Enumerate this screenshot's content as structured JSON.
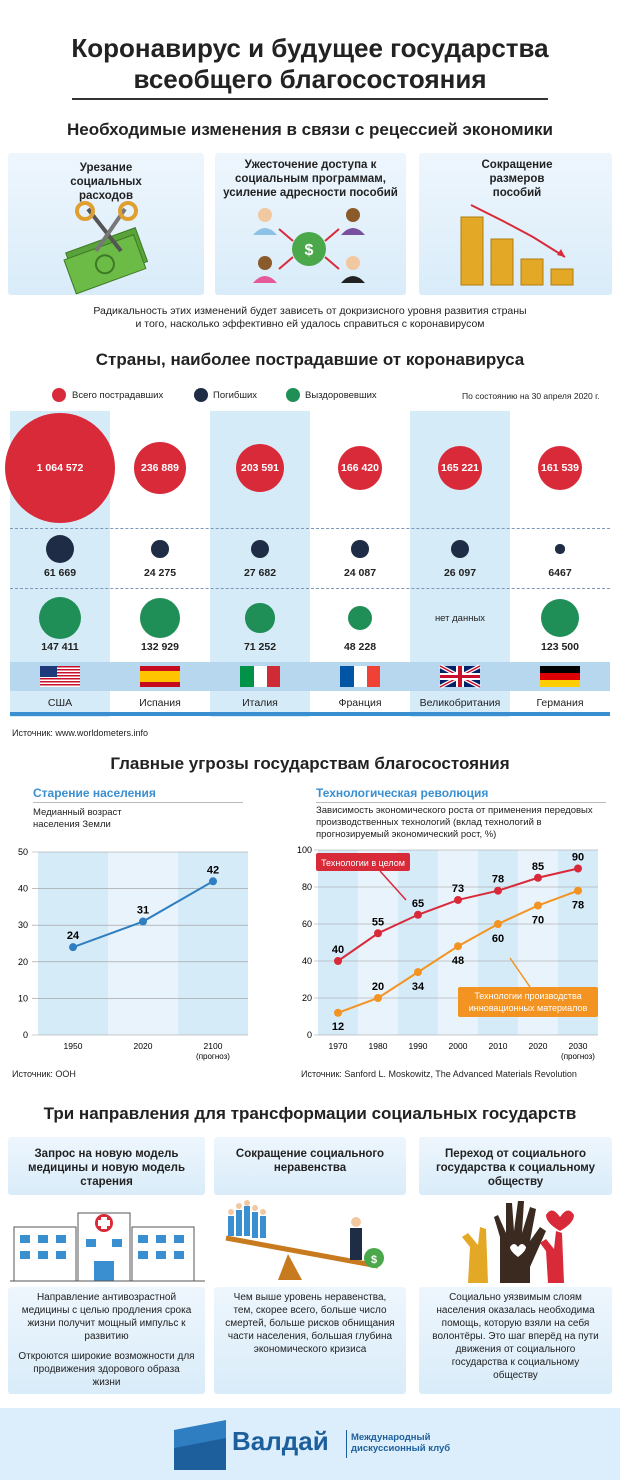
{
  "header": {
    "title_line1": "Коронавирус и будущее государства",
    "title_line2": "всеобщего благосостояния"
  },
  "section1": {
    "title": "Необходимые изменения в связи с рецессией экономики",
    "panels": [
      {
        "title": "Урезание социальных расходов",
        "icon": "scissors-money-icon"
      },
      {
        "title": "Ужесточение доступа к социальным программам, усиление адресности пособий",
        "icon": "money-bag-people-icon"
      },
      {
        "title": "Сокращение размеров пособий",
        "icon": "coin-stacks-decline-icon"
      }
    ],
    "note_line1": "Радикальность этих изменений будет зависеть от докризисного уровня развития страны",
    "note_line2": "и того, насколько эффективно ей удалось справиться с коронавирусом"
  },
  "section2": {
    "title": "Страны, наиболее пострадавшие от коронавируса",
    "legend": {
      "total": "Всего пострадавших",
      "deaths": "Погибших",
      "recovered": "Выздоровевших"
    },
    "date_note": "По состоянию на 30 апреля 2020 г.",
    "colors": {
      "total": "#d92a3a",
      "deaths": "#1e2c45",
      "recovered": "#1f8f57"
    },
    "countries": [
      {
        "name": "США",
        "total": "1 064 572",
        "total_value": 1064572,
        "deaths": "61 669",
        "deaths_value": 61669,
        "recovered": "147 411",
        "recovered_value": 147411,
        "flag": "usa-flag-icon"
      },
      {
        "name": "Испания",
        "total": "236 889",
        "total_value": 236889,
        "deaths": "24 275",
        "deaths_value": 24275,
        "recovered": "132 929",
        "recovered_value": 132929,
        "flag": "spain-flag-icon"
      },
      {
        "name": "Италия",
        "total": "203 591",
        "total_value": 203591,
        "deaths": "27 682",
        "deaths_value": 27682,
        "recovered": "71 252",
        "recovered_value": 71252,
        "flag": "italy-flag-icon"
      },
      {
        "name": "Франция",
        "total": "166 420",
        "total_value": 166420,
        "deaths": "24 087",
        "deaths_value": 24087,
        "recovered": "48 228",
        "recovered_value": 48228,
        "flag": "france-flag-icon"
      },
      {
        "name": "Великобритания",
        "total": "165 221",
        "total_value": 165221,
        "deaths": "26 097",
        "deaths_value": 26097,
        "recovered": "нет данных",
        "recovered_value": null,
        "flag": "uk-flag-icon"
      },
      {
        "name": "Германия",
        "total": "161 539",
        "total_value": 161539,
        "deaths": "6467",
        "deaths_value": 6467,
        "recovered": "123 500",
        "recovered_value": 123500,
        "flag": "germany-flag-icon"
      }
    ],
    "source": "Источник: www.worldometers.info"
  },
  "section3": {
    "title": "Главные угрозы государствам благосостояния",
    "source_left": "Источник: ООН",
    "source_right": "Источник: Sanford L. Moskowitz, The Advanced Materials Revolution"
  },
  "chart_data": [
    {
      "type": "line",
      "title": "Старение населения",
      "subtitle": "Медианный возраст населения Земли",
      "categories": [
        "1950",
        "2020",
        "2100"
      ],
      "category_notes": [
        "",
        "",
        "(прогноз)"
      ],
      "series": [
        {
          "values": [
            24,
            31,
            42
          ]
        }
      ],
      "ylim": [
        0,
        50
      ],
      "yticks": [
        0,
        10,
        20,
        30,
        40,
        50
      ],
      "grid": true
    },
    {
      "type": "line",
      "title": "Технологическая революция",
      "subtitle": "Зависимость экономического роста от применения передовых производственных технологий (вклад технологий в прогнозируемый экономический рост, %)",
      "categories": [
        "1970",
        "1980",
        "1990",
        "2000",
        "2010",
        "2020",
        "2030"
      ],
      "category_notes": [
        "",
        "",
        "",
        "",
        "",
        "",
        "(прогноз)"
      ],
      "series": [
        {
          "name": "Технологии в целом",
          "color": "#d92a3a",
          "values": [
            40,
            55,
            65,
            73,
            78,
            85,
            90
          ]
        },
        {
          "name": "Технологии производства инновационных материалов",
          "color": "#f39322",
          "values": [
            12,
            20,
            34,
            48,
            60,
            70,
            78
          ]
        }
      ],
      "ylim": [
        0,
        100
      ],
      "yticks": [
        0,
        20,
        40,
        60,
        80,
        100
      ],
      "grid": true
    }
  ],
  "section4": {
    "title": "Три направления для трансформации социальных государств",
    "panels": [
      {
        "title": "Запрос на новую модель медицины и новую модель старения",
        "icon": "hospital-icon",
        "text1": "Направление антивозрастной медицины с целью продления срока жизни получит мощный импульс к развитию",
        "text2": "Откроются широкие возможности для продвижения здорового образа жизни"
      },
      {
        "title": "Сокращение социального неравенства",
        "icon": "inequality-seesaw-icon",
        "text1": "Чем выше уровень неравенства, тем, скорее всего, больше число смертей, больше рисков обнищания части населения, большая глубина экономического кризиса",
        "text2": ""
      },
      {
        "title": "Переход от социального государства к социальному обществу",
        "icon": "raised-hands-heart-icon",
        "text1": "Социально уязвимым слоям населения оказалась необходима помощь, которую взяли на себя волонтёры. Это шаг вперёд на пути движения от социального государства к социальному обществу",
        "text2": ""
      }
    ]
  },
  "footer": {
    "logo": "Валдай",
    "club_line1": "Международный",
    "club_line2": "дискуссионный клуб"
  }
}
